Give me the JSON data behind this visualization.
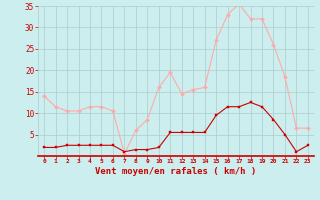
{
  "hours": [
    0,
    1,
    2,
    3,
    4,
    5,
    6,
    7,
    8,
    9,
    10,
    11,
    12,
    13,
    14,
    15,
    16,
    17,
    18,
    19,
    20,
    21,
    22,
    23
  ],
  "wind_avg": [
    2,
    2,
    2.5,
    2.5,
    2.5,
    2.5,
    2.5,
    1,
    1.5,
    1.5,
    2,
    5.5,
    5.5,
    5.5,
    5.5,
    9.5,
    11.5,
    11.5,
    12.5,
    11.5,
    8.5,
    5,
    1,
    2.5
  ],
  "wind_gust": [
    14,
    11.5,
    10.5,
    10.5,
    11.5,
    11.5,
    10.5,
    0.5,
    6,
    8.5,
    16,
    19.5,
    14.5,
    15.5,
    16,
    27,
    33,
    35.5,
    32,
    32,
    26,
    18.5,
    6.5,
    6.5
  ],
  "avg_color": "#cc0000",
  "gust_color": "#ffaaaa",
  "bg_color": "#cceeee",
  "grid_color": "#aacccc",
  "xlabel": "Vent moyen/en rafales ( km/h )",
  "ylim": [
    0,
    35
  ],
  "yticks": [
    0,
    5,
    10,
    15,
    20,
    25,
    30,
    35
  ],
  "tick_color": "#cc0000",
  "label_color": "#cc0000"
}
